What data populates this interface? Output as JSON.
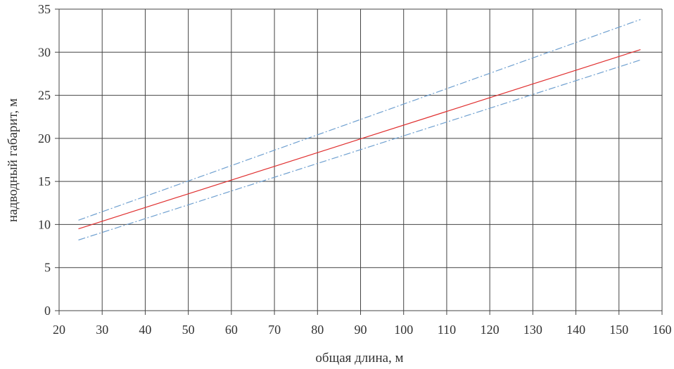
{
  "chart_data": {
    "type": "line",
    "xlabel": "общая длина, м",
    "ylabel": "надводный габарит, м",
    "xlim": [
      20,
      160
    ],
    "ylim": [
      0,
      35
    ],
    "xticks": [
      "20",
      "30",
      "40",
      "50",
      "60",
      "70",
      "80",
      "90",
      "100",
      "110",
      "120",
      "130",
      "140",
      "150",
      "160"
    ],
    "yticks": [
      "0",
      "5",
      "10",
      "15",
      "20",
      "25",
      "30",
      "35"
    ],
    "grid": true,
    "series": [
      {
        "color": "#e03030",
        "dash": "solid",
        "x": [
          24.5,
          155
        ],
        "y": [
          9.5,
          30.3
        ]
      },
      {
        "color": "#6fa0d0",
        "dash": "dashed",
        "x": [
          24.5,
          155
        ],
        "y": [
          10.5,
          33.8
        ]
      },
      {
        "color": "#6fa0d0",
        "dash": "dashed",
        "x": [
          24.5,
          155
        ],
        "y": [
          8.2,
          29.1
        ]
      }
    ]
  }
}
